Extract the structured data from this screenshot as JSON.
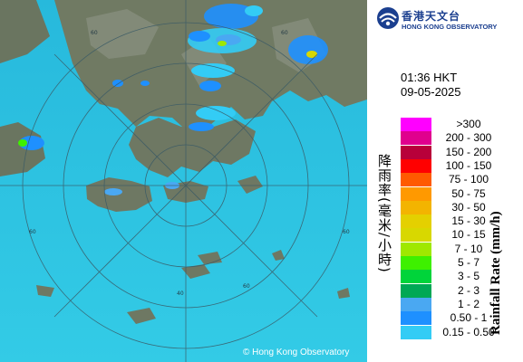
{
  "header": {
    "org_name_zh": "香港天文台",
    "org_name_en": "HONG KONG OBSERVATORY"
  },
  "timestamp": {
    "time": "01:36 HKT",
    "date": "09-05-2025"
  },
  "map": {
    "copyright": "© Hong Kong Observatory",
    "range_ring_labels": [
      "60",
      "60",
      "60",
      "60",
      "60",
      "40"
    ]
  },
  "legend": {
    "title_zh": "降雨率(毫米/小時)",
    "title_en": "Rainfall Rate (mm/h)",
    "items": [
      {
        "label": ">300",
        "color": "#ff00ff"
      },
      {
        "label": "200 - 300",
        "color": "#e0008e"
      },
      {
        "label": "150 - 200",
        "color": "#b8003a"
      },
      {
        "label": "100 - 150",
        "color": "#ff0000"
      },
      {
        "label": "75 - 100",
        "color": "#ff5a00"
      },
      {
        "label": "50 - 75",
        "color": "#ff9900"
      },
      {
        "label": "30 - 50",
        "color": "#f3b400"
      },
      {
        "label": "15 - 30",
        "color": "#e4d000"
      },
      {
        "label": "10 - 15",
        "color": "#d8d800"
      },
      {
        "label": "7 - 10",
        "color": "#9fe800"
      },
      {
        "label": "5 - 7",
        "color": "#3ef000"
      },
      {
        "label": "3 - 5",
        "color": "#00d43a"
      },
      {
        "label": "2 - 3",
        "color": "#00a855"
      },
      {
        "label": "1 - 2",
        "color": "#4aa8f2"
      },
      {
        "label": "0.50 - 1",
        "color": "#1e90ff"
      },
      {
        "label": "0.15 - 0.50",
        "color": "#33ccf5"
      }
    ]
  },
  "colors": {
    "sea": "#2ec6e2",
    "land": "#6d7a63",
    "accent": "#1b3f8f"
  }
}
